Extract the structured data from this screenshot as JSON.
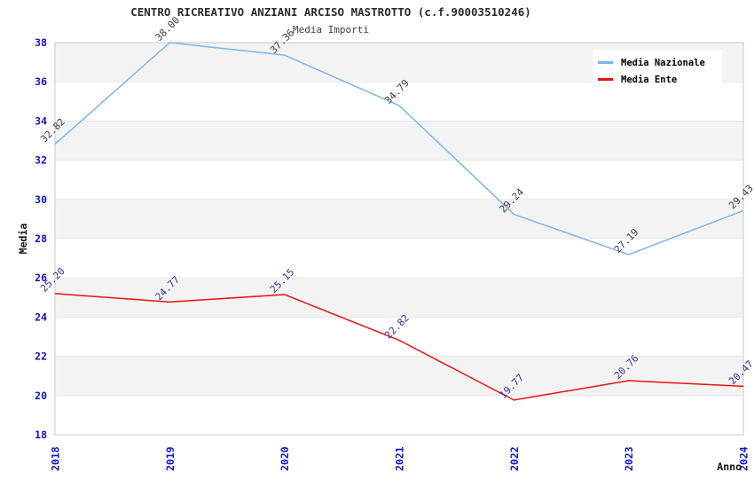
{
  "header": {
    "title": "CENTRO RICREATIVO ANZIANI ARCISO MASTROTTO (c.f.90003510246)",
    "subtitle": "Media Importi"
  },
  "chart_data": {
    "type": "line",
    "x": [
      2018,
      2019,
      2020,
      2021,
      2022,
      2023,
      2024
    ],
    "xlabel": "Anno",
    "ylabel": "Media",
    "ylim": [
      18,
      38
    ],
    "ytick_step": 2,
    "grid": "horizontal-bands",
    "legend_position": "top-right-inside",
    "series": [
      {
        "name": "Media Nazionale",
        "color": "#7cb5ec",
        "label_color": "#3c3c3c",
        "values": [
          32.82,
          38.0,
          37.36,
          34.79,
          29.24,
          27.19,
          29.43
        ]
      },
      {
        "name": "Media Ente",
        "color": "#ee1111",
        "label_color": "#32329b",
        "values": [
          25.2,
          24.77,
          25.15,
          22.82,
          19.77,
          20.76,
          20.47
        ]
      }
    ],
    "colors": {
      "tick_label": "#1212cc",
      "band_fill": "#f3f3f3",
      "gridline": "#e7e7e7",
      "plot_border": "#c9c9c9"
    }
  }
}
